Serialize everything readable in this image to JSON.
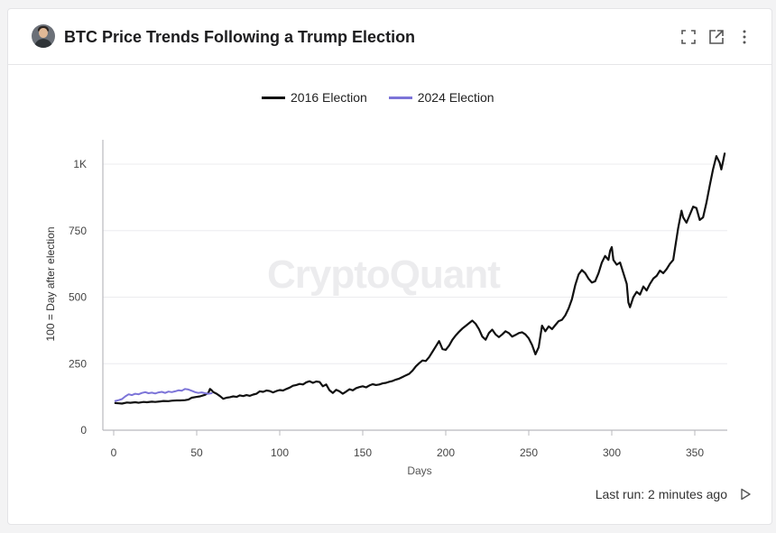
{
  "header": {
    "title": "BTC Price Trends Following a Trump Election",
    "icons": [
      "expand-icon",
      "open-external-icon",
      "more-vertical-icon"
    ]
  },
  "watermark": "CryptoQuant",
  "footer": {
    "last_run": "Last run: 2 minutes ago"
  },
  "chart_data": {
    "type": "line",
    "xlabel": "Days",
    "ylabel": "100 = Day after election",
    "xlim": [
      0,
      370
    ],
    "ylim": [
      0,
      1000
    ],
    "x_ticks": [
      0,
      50,
      100,
      150,
      200,
      250,
      300,
      350
    ],
    "x_tick_labels": [
      "0",
      "50",
      "100",
      "150",
      "200",
      "250",
      "300",
      "350"
    ],
    "y_ticks": [
      0,
      250,
      500,
      750,
      1000
    ],
    "y_tick_labels": [
      "0",
      "250",
      "500",
      "750",
      "1K"
    ],
    "grid": true,
    "legend_position": "top-center",
    "series": [
      {
        "name": "2016 Election",
        "color": "#111111",
        "points": [
          [
            1,
            102
          ],
          [
            3,
            101
          ],
          [
            5,
            100
          ],
          [
            8,
            104
          ],
          [
            10,
            103
          ],
          [
            13,
            105
          ],
          [
            15,
            103
          ],
          [
            18,
            106
          ],
          [
            20,
            105
          ],
          [
            23,
            107
          ],
          [
            25,
            106
          ],
          [
            28,
            108
          ],
          [
            30,
            110
          ],
          [
            33,
            109
          ],
          [
            35,
            111
          ],
          [
            38,
            112
          ],
          [
            40,
            112
          ],
          [
            43,
            113
          ],
          [
            45,
            115
          ],
          [
            47,
            122
          ],
          [
            50,
            125
          ],
          [
            52,
            127
          ],
          [
            55,
            133
          ],
          [
            57,
            140
          ],
          [
            58,
            155
          ],
          [
            59,
            150
          ],
          [
            60,
            143
          ],
          [
            62,
            137
          ],
          [
            64,
            128
          ],
          [
            66,
            118
          ],
          [
            68,
            122
          ],
          [
            70,
            124
          ],
          [
            72,
            127
          ],
          [
            74,
            125
          ],
          [
            76,
            131
          ],
          [
            78,
            128
          ],
          [
            80,
            132
          ],
          [
            82,
            129
          ],
          [
            84,
            134
          ],
          [
            86,
            137
          ],
          [
            88,
            146
          ],
          [
            90,
            144
          ],
          [
            92,
            149
          ],
          [
            94,
            147
          ],
          [
            96,
            142
          ],
          [
            98,
            147
          ],
          [
            100,
            151
          ],
          [
            102,
            149
          ],
          [
            104,
            155
          ],
          [
            106,
            160
          ],
          [
            108,
            167
          ],
          [
            110,
            170
          ],
          [
            112,
            174
          ],
          [
            114,
            172
          ],
          [
            116,
            180
          ],
          [
            118,
            184
          ],
          [
            120,
            178
          ],
          [
            122,
            183
          ],
          [
            124,
            181
          ],
          [
            126,
            165
          ],
          [
            128,
            172
          ],
          [
            130,
            150
          ],
          [
            132,
            140
          ],
          [
            134,
            152
          ],
          [
            136,
            146
          ],
          [
            138,
            137
          ],
          [
            140,
            145
          ],
          [
            142,
            154
          ],
          [
            144,
            150
          ],
          [
            146,
            158
          ],
          [
            148,
            162
          ],
          [
            150,
            165
          ],
          [
            152,
            161
          ],
          [
            154,
            168
          ],
          [
            156,
            173
          ],
          [
            158,
            170
          ],
          [
            160,
            172
          ],
          [
            162,
            176
          ],
          [
            164,
            178
          ],
          [
            166,
            182
          ],
          [
            168,
            185
          ],
          [
            170,
            190
          ],
          [
            172,
            194
          ],
          [
            174,
            200
          ],
          [
            176,
            206
          ],
          [
            178,
            212
          ],
          [
            180,
            224
          ],
          [
            182,
            240
          ],
          [
            184,
            252
          ],
          [
            186,
            262
          ],
          [
            188,
            260
          ],
          [
            190,
            275
          ],
          [
            192,
            295
          ],
          [
            194,
            315
          ],
          [
            196,
            335
          ],
          [
            197,
            320
          ],
          [
            198,
            305
          ],
          [
            200,
            302
          ],
          [
            202,
            318
          ],
          [
            204,
            340
          ],
          [
            206,
            356
          ],
          [
            208,
            370
          ],
          [
            210,
            382
          ],
          [
            212,
            392
          ],
          [
            214,
            402
          ],
          [
            216,
            412
          ],
          [
            218,
            400
          ],
          [
            220,
            380
          ],
          [
            222,
            352
          ],
          [
            224,
            340
          ],
          [
            226,
            365
          ],
          [
            228,
            378
          ],
          [
            230,
            360
          ],
          [
            232,
            350
          ],
          [
            234,
            360
          ],
          [
            236,
            372
          ],
          [
            238,
            365
          ],
          [
            240,
            352
          ],
          [
            242,
            358
          ],
          [
            244,
            365
          ],
          [
            246,
            368
          ],
          [
            248,
            360
          ],
          [
            250,
            345
          ],
          [
            252,
            320
          ],
          [
            254,
            285
          ],
          [
            256,
            312
          ],
          [
            258,
            393
          ],
          [
            260,
            372
          ],
          [
            262,
            390
          ],
          [
            264,
            380
          ],
          [
            266,
            395
          ],
          [
            268,
            410
          ],
          [
            270,
            415
          ],
          [
            272,
            432
          ],
          [
            274,
            458
          ],
          [
            276,
            492
          ],
          [
            278,
            545
          ],
          [
            280,
            585
          ],
          [
            282,
            602
          ],
          [
            284,
            590
          ],
          [
            286,
            570
          ],
          [
            288,
            555
          ],
          [
            290,
            560
          ],
          [
            292,
            590
          ],
          [
            294,
            630
          ],
          [
            296,
            655
          ],
          [
            298,
            640
          ],
          [
            299,
            675
          ],
          [
            300,
            688
          ],
          [
            301,
            640
          ],
          [
            303,
            622
          ],
          [
            305,
            630
          ],
          [
            307,
            590
          ],
          [
            309,
            550
          ],
          [
            310,
            480
          ],
          [
            311,
            462
          ],
          [
            313,
            500
          ],
          [
            315,
            520
          ],
          [
            317,
            510
          ],
          [
            319,
            540
          ],
          [
            321,
            525
          ],
          [
            323,
            550
          ],
          [
            325,
            570
          ],
          [
            327,
            580
          ],
          [
            329,
            600
          ],
          [
            331,
            590
          ],
          [
            333,
            605
          ],
          [
            335,
            625
          ],
          [
            337,
            640
          ],
          [
            338,
            680
          ],
          [
            340,
            760
          ],
          [
            342,
            825
          ],
          [
            343,
            800
          ],
          [
            345,
            780
          ],
          [
            347,
            810
          ],
          [
            349,
            840
          ],
          [
            351,
            835
          ],
          [
            353,
            790
          ],
          [
            355,
            800
          ],
          [
            357,
            855
          ],
          [
            359,
            920
          ],
          [
            361,
            980
          ],
          [
            363,
            1030
          ],
          [
            365,
            1005
          ],
          [
            366,
            980
          ],
          [
            367,
            1010
          ],
          [
            368,
            1040
          ]
        ]
      },
      {
        "name": "2024 Election",
        "color": "#7c74d8",
        "points": [
          [
            1,
            110
          ],
          [
            3,
            113
          ],
          [
            5,
            117
          ],
          [
            7,
            127
          ],
          [
            9,
            135
          ],
          [
            11,
            132
          ],
          [
            13,
            137
          ],
          [
            15,
            135
          ],
          [
            17,
            140
          ],
          [
            19,
            143
          ],
          [
            21,
            139
          ],
          [
            23,
            141
          ],
          [
            25,
            138
          ],
          [
            27,
            142
          ],
          [
            29,
            144
          ],
          [
            31,
            140
          ],
          [
            33,
            145
          ],
          [
            35,
            143
          ],
          [
            37,
            146
          ],
          [
            39,
            150
          ],
          [
            41,
            148
          ],
          [
            43,
            155
          ],
          [
            45,
            153
          ],
          [
            47,
            148
          ],
          [
            49,
            143
          ],
          [
            51,
            140
          ],
          [
            53,
            142
          ],
          [
            55,
            139
          ],
          [
            57,
            137
          ],
          [
            59,
            139
          ]
        ]
      }
    ]
  }
}
